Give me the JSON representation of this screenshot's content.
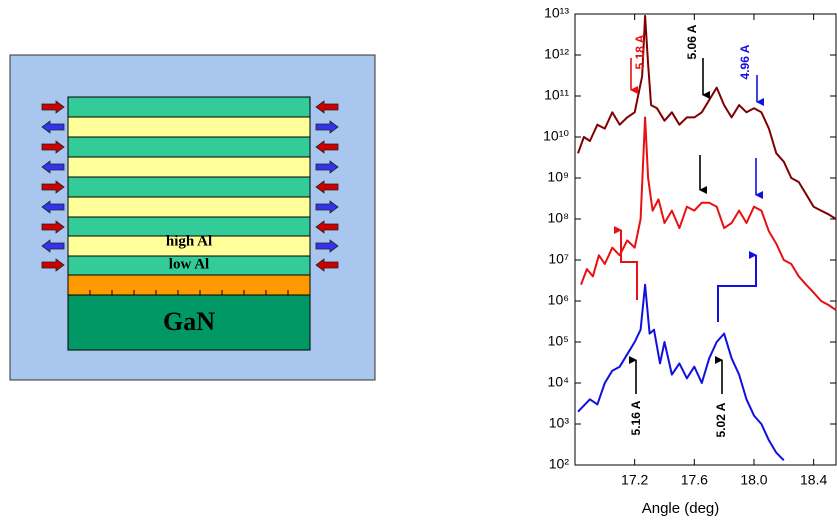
{
  "diagram": {
    "labels": [
      "high Al",
      "low Al",
      "GaN"
    ]
  },
  "chart_data": {
    "type": "line",
    "x_label": "Angle (deg)",
    "log_y": true,
    "xlim": [
      16.8,
      18.55
    ],
    "ylim": [
      100,
      10000000000000.0
    ],
    "xticks": [
      17.2,
      17.6,
      {
        "value": 18,
        "label": "18.0"
      },
      18.4
    ],
    "yticks": [
      {
        "value": 100,
        "label": "10²"
      },
      {
        "value": 1000,
        "label": "10³"
      },
      {
        "value": 10000,
        "label": "10⁴"
      },
      {
        "value": 100000,
        "label": "10⁵"
      },
      {
        "value": 1000000,
        "label": "10⁶"
      },
      {
        "value": 10000000,
        "label": "10⁷"
      },
      {
        "value": 100000000,
        "label": "10⁸"
      },
      {
        "value": 1000000000,
        "label": "10⁹"
      },
      {
        "value": 10000000000,
        "label": "10¹⁰"
      },
      {
        "value": 100000000000,
        "label": "10¹¹"
      },
      {
        "value": 1000000000000,
        "label": "10¹²"
      },
      {
        "value": 10000000000000,
        "label": "10¹³"
      }
    ],
    "series": [
      {
        "color": "#800000",
        "x": [
          16.82,
          16.86,
          16.9,
          16.95,
          17.0,
          17.05,
          17.1,
          17.15,
          17.2,
          17.25,
          17.27,
          17.29,
          17.31,
          17.35,
          17.4,
          17.45,
          17.5,
          17.55,
          17.6,
          17.65,
          17.7,
          17.75,
          17.8,
          17.85,
          17.9,
          17.95,
          18.0,
          18.05,
          18.1,
          18.15,
          18.2,
          18.25,
          18.3,
          18.35,
          18.4,
          18.45,
          18.5,
          18.55
        ],
        "values": [
          4000000000.0,
          10000000000.0,
          8000000000.0,
          20000000000.0,
          16000000000.0,
          40000000000.0,
          20000000000.0,
          30000000000.0,
          40000000000.0,
          300000000000.0,
          9000000000000.0,
          600000000000.0,
          60000000000.0,
          50000000000.0,
          25000000000.0,
          40000000000.0,
          20000000000.0,
          30000000000.0,
          30000000000.0,
          40000000000.0,
          80000000000.0,
          160000000000.0,
          60000000000.0,
          30000000000.0,
          60000000000.0,
          40000000000.0,
          50000000000.0,
          40000000000.0,
          16000000000.0,
          4000000000.0,
          2500000000.0,
          1000000000.0,
          800000000.0,
          400000000.0,
          200000000.0,
          160000000.0,
          130000000.0,
          100000000.0
        ]
      },
      {
        "color": "#e81010",
        "x": [
          16.84,
          16.88,
          16.92,
          16.96,
          17.0,
          17.05,
          17.1,
          17.15,
          17.2,
          17.24,
          17.27,
          17.29,
          17.32,
          17.36,
          17.4,
          17.45,
          17.5,
          17.55,
          17.6,
          17.65,
          17.7,
          17.75,
          17.8,
          17.85,
          17.9,
          17.95,
          18.0,
          18.05,
          18.1,
          18.15,
          18.2,
          18.25,
          18.3,
          18.35,
          18.4,
          18.45,
          18.5,
          18.55
        ],
        "values": [
          2500000.0,
          6000000.0,
          4000000.0,
          13000000.0,
          8000000.0,
          20000000.0,
          13000000.0,
          30000000.0,
          20000000.0,
          100000000.0,
          30000000000.0,
          1000000000.0,
          160000000.0,
          300000000.0,
          80000000.0,
          160000000.0,
          60000000.0,
          200000000.0,
          160000000.0,
          250000000.0,
          250000000.0,
          200000000.0,
          60000000.0,
          80000000.0,
          160000000.0,
          80000000.0,
          200000000.0,
          160000000.0,
          50000000.0,
          25000000.0,
          10000000.0,
          8000000.0,
          4000000.0,
          2500000.0,
          1600000.0,
          1000000.0,
          800000.0,
          600000.0
        ]
      },
      {
        "color": "#1010e0",
        "x": [
          16.82,
          16.9,
          16.95,
          17.0,
          17.05,
          17.1,
          17.15,
          17.2,
          17.24,
          17.27,
          17.3,
          17.33,
          17.37,
          17.4,
          17.45,
          17.5,
          17.55,
          17.6,
          17.65,
          17.7,
          17.75,
          17.8,
          17.85,
          17.9,
          17.95,
          18.0,
          18.05,
          18.1,
          18.15,
          18.2
        ],
        "values": [
          2000,
          4000,
          3000,
          10000,
          20000,
          25000,
          50000,
          100000,
          200000,
          2500000,
          160000,
          200000,
          30000,
          100000,
          16000,
          30000,
          13000,
          25000,
          10000,
          40000,
          100000,
          160000,
          40000,
          16000,
          4000,
          1600,
          1000,
          400,
          200,
          130
        ]
      }
    ],
    "annotations": [
      {
        "text": "5.18 A",
        "color": "#e81010"
      },
      {
        "text": "5.06 A",
        "color": "#000000"
      },
      {
        "text": "4.96 A",
        "color": "#1010e0"
      },
      {
        "text": "5.16 A",
        "color": "#000000"
      },
      {
        "text": "5.02 A",
        "color": "#000000"
      }
    ]
  }
}
